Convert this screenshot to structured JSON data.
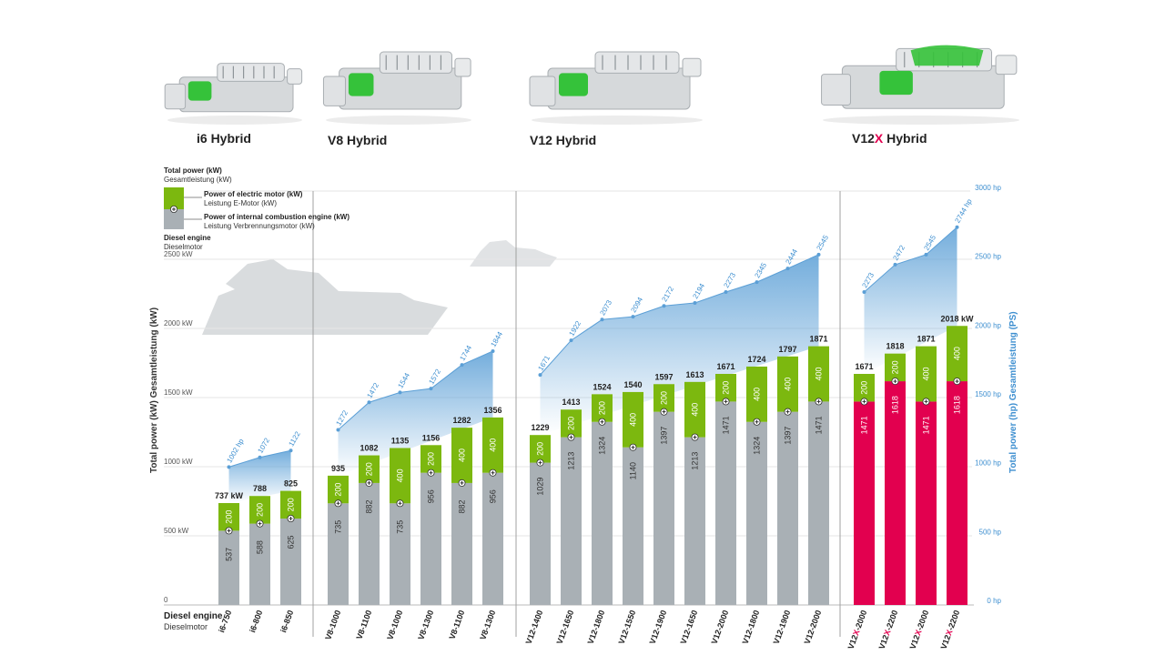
{
  "colors": {
    "diesel": "#a9b0b5",
    "electric": "#7cb80f",
    "v12x_diesel": "#e2004f",
    "hp_area": "#5b9fd6",
    "hp_text": "#3e8fd0",
    "grid": "#e6e6e6",
    "engine_green": "#35c23a"
  },
  "families": [
    {
      "name": "i6 Hybrid",
      "prefix": "i6 Hybrid",
      "accent": "",
      "suffix": "",
      "icon": "i6-engine-icon"
    },
    {
      "name": "V8 Hybrid",
      "prefix": "V8 Hybrid",
      "accent": "",
      "suffix": "",
      "icon": "v8-engine-icon"
    },
    {
      "name": "V12 Hybrid",
      "prefix": "V12 Hybrid",
      "accent": "",
      "suffix": "",
      "icon": "v12-engine-icon"
    },
    {
      "name": "V12X Hybrid",
      "prefix": "V12",
      "accent": "X",
      "suffix": " Hybrid",
      "icon": "v12x-engine-icon"
    }
  ],
  "legend": {
    "total_en": "Total power (kW)",
    "total_de": "Gesamtleistung (kW)",
    "electric_en": "Power of electric motor (kW)",
    "electric_de": "Leistung E-Motor (kW)",
    "ice_en": "Power of internal combustion engine (kW)",
    "ice_de": "Leistung Verbrennungsmotor (kW)",
    "diesel_en": "Diesel engine",
    "diesel_de": "Dieselmotor"
  },
  "bottom_label": {
    "en": "Diesel engine",
    "de": "Dieselmotor"
  },
  "chart_data": {
    "type": "bar",
    "stacked": true,
    "title": "",
    "ylabel_left": {
      "en": "Total power (kW)",
      "de": "Gesamtleistung (kW)"
    },
    "ylabel_right": {
      "en": "Total power (hp)",
      "de": "Gesamtleistung (PS)"
    },
    "ylim_kw": [
      0,
      2500
    ],
    "ylim_hp": [
      0,
      3000
    ],
    "left_ticks": [
      {
        "v": 0,
        "label": "0"
      },
      {
        "v": 500,
        "label": "500 kW"
      },
      {
        "v": 1000,
        "label": "1000 kW"
      },
      {
        "v": 1500,
        "label": "1500 kW"
      },
      {
        "v": 2000,
        "label": "2000 kW"
      },
      {
        "v": 2500,
        "label": "2500 kW"
      }
    ],
    "right_ticks": [
      {
        "v": 0,
        "label": "0 hp"
      },
      {
        "v": 500,
        "label": "500 hp"
      },
      {
        "v": 1000,
        "label": "1000 hp"
      },
      {
        "v": 1500,
        "label": "1500 hp"
      },
      {
        "v": 2000,
        "label": "2000 hp"
      },
      {
        "v": 2500,
        "label": "2500 hp"
      },
      {
        "v": 3000,
        "label": "3000 hp"
      }
    ],
    "groups": [
      {
        "family": "i6",
        "bars": [
          {
            "name": "i6-750",
            "diesel": 537,
            "electric": 200,
            "total": 737,
            "total_label": "737 kW",
            "hp": 1002,
            "hp_label": "1002 hp"
          },
          {
            "name": "i6-800",
            "diesel": 588,
            "electric": 200,
            "total": 788,
            "total_label": "788",
            "hp": 1072,
            "hp_label": "1072"
          },
          {
            "name": "i6-850",
            "diesel": 625,
            "electric": 200,
            "total": 825,
            "total_label": "825",
            "hp": 1122,
            "hp_label": "1122"
          }
        ]
      },
      {
        "family": "V8",
        "bars": [
          {
            "name": "V8-1000",
            "diesel": 735,
            "electric": 200,
            "total": 935,
            "total_label": "935",
            "hp": 1272,
            "hp_label": "1272"
          },
          {
            "name": "V8-1100",
            "diesel": 882,
            "electric": 200,
            "total": 1082,
            "total_label": "1082",
            "hp": 1472,
            "hp_label": "1472"
          },
          {
            "name": "V8-1000",
            "diesel": 735,
            "electric": 400,
            "total": 1135,
            "total_label": "1135",
            "hp": 1544,
            "hp_label": "1544"
          },
          {
            "name": "V8-1300",
            "diesel": 956,
            "electric": 200,
            "total": 1156,
            "total_label": "1156",
            "hp": 1572,
            "hp_label": "1572"
          },
          {
            "name": "V8-1100",
            "diesel": 882,
            "electric": 400,
            "total": 1282,
            "total_label": "1282",
            "hp": 1744,
            "hp_label": "1744"
          },
          {
            "name": "V8-1300",
            "diesel": 956,
            "electric": 400,
            "total": 1356,
            "total_label": "1356",
            "hp": 1844,
            "hp_label": "1844"
          }
        ]
      },
      {
        "family": "V12",
        "bars": [
          {
            "name": "V12-1400",
            "diesel": 1029,
            "electric": 200,
            "total": 1229,
            "total_label": "1229",
            "hp": 1671,
            "hp_label": "1671"
          },
          {
            "name": "V12-1650",
            "diesel": 1213,
            "electric": 200,
            "total": 1413,
            "total_label": "1413",
            "hp": 1922,
            "hp_label": "1922"
          },
          {
            "name": "V12-1800",
            "diesel": 1324,
            "electric": 200,
            "total": 1524,
            "total_label": "1524",
            "hp": 2073,
            "hp_label": "2073"
          },
          {
            "name": "V12-1550",
            "diesel": 1140,
            "electric": 400,
            "total": 1540,
            "total_label": "1540",
            "hp": 2094,
            "hp_label": "2094"
          },
          {
            "name": "V12-1900",
            "diesel": 1397,
            "electric": 200,
            "total": 1597,
            "total_label": "1597",
            "hp": 2172,
            "hp_label": "2172"
          },
          {
            "name": "V12-1650",
            "diesel": 1213,
            "electric": 400,
            "total": 1613,
            "total_label": "1613",
            "hp": 2194,
            "hp_label": "2194"
          },
          {
            "name": "V12-2000",
            "diesel": 1471,
            "electric": 200,
            "total": 1671,
            "total_label": "1671",
            "hp": 2273,
            "hp_label": "2273"
          },
          {
            "name": "V12-1800",
            "diesel": 1324,
            "electric": 400,
            "total": 1724,
            "total_label": "1724",
            "hp": 2345,
            "hp_label": "2345"
          },
          {
            "name": "V12-1900",
            "diesel": 1397,
            "electric": 400,
            "total": 1797,
            "total_label": "1797",
            "hp": 2444,
            "hp_label": "2444"
          },
          {
            "name": "V12-2000",
            "diesel": 1471,
            "electric": 400,
            "total": 1871,
            "total_label": "1871",
            "hp": 2545,
            "hp_label": "2545"
          }
        ]
      },
      {
        "family": "V12X",
        "bars": [
          {
            "name": "V12X-2000",
            "pre": "V12",
            "x": "X",
            "post": "-2000",
            "diesel": 1471,
            "electric": 200,
            "total": 1671,
            "total_label": "1671",
            "hp": 2273,
            "hp_label": "2273"
          },
          {
            "name": "V12X-2200",
            "pre": "V12",
            "x": "X",
            "post": "-2200",
            "diesel": 1618,
            "electric": 200,
            "total": 1818,
            "total_label": "1818",
            "hp": 2472,
            "hp_label": "2472"
          },
          {
            "name": "V12X-2000",
            "pre": "V12",
            "x": "X",
            "post": "-2000",
            "diesel": 1471,
            "electric": 400,
            "total": 1871,
            "total_label": "1871",
            "hp": 2545,
            "hp_label": "2545"
          },
          {
            "name": "V12X-2200",
            "pre": "V12",
            "x": "X",
            "post": "-2200",
            "diesel": 1618,
            "electric": 400,
            "total": 2018,
            "total_label": "2018 kW",
            "hp": 2744,
            "hp_label": "2744 hp"
          }
        ]
      }
    ]
  }
}
